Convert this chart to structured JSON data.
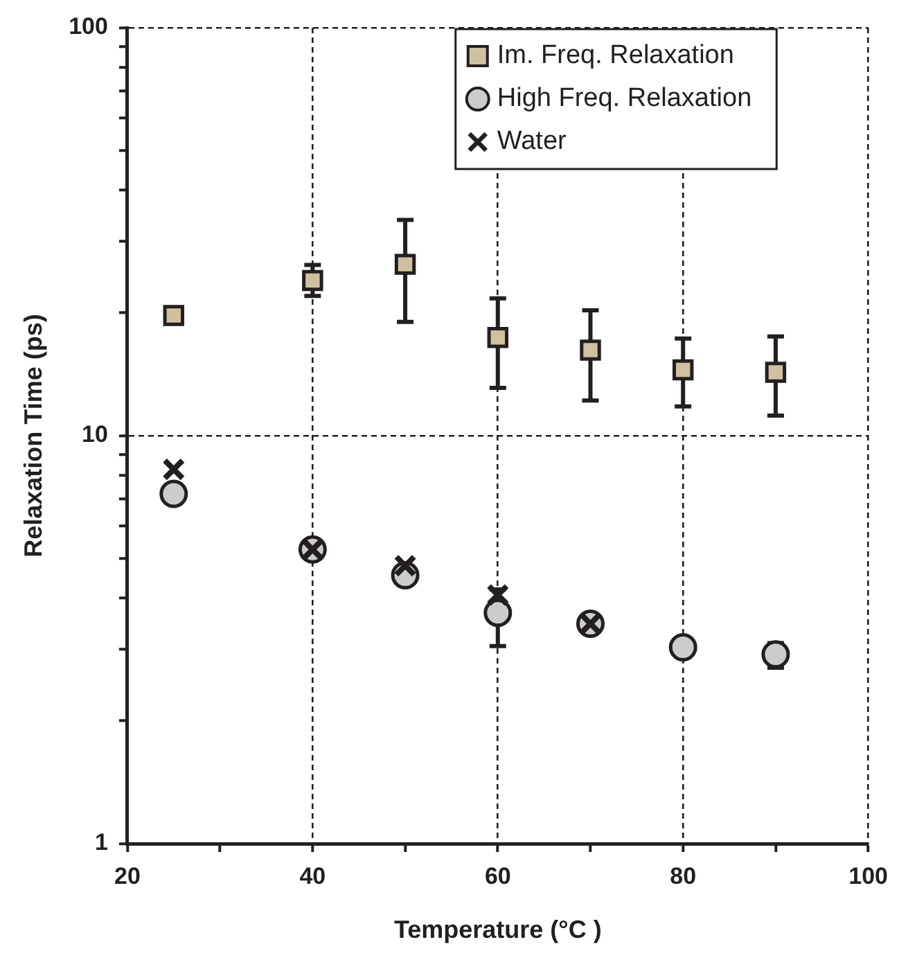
{
  "chart_data": {
    "type": "scatter",
    "xlabel": "Temperature (°C )",
    "ylabel": "Relaxation Time (ps)",
    "x": [
      25,
      40,
      50,
      60,
      70,
      80,
      90
    ],
    "series": [
      {
        "name": "Im. Freq. Relaxation",
        "color": "#cfc19f",
        "marker": "square",
        "values": [
          19.7,
          24.0,
          26.3,
          17.4,
          16.2,
          14.5,
          14.3
        ],
        "errors": [
          null,
          [
            22.0,
            26.2
          ],
          [
            19.0,
            33.8
          ],
          [
            13.1,
            21.7
          ],
          [
            12.2,
            20.3
          ],
          [
            11.8,
            17.3
          ],
          [
            11.2,
            17.5
          ]
        ]
      },
      {
        "name": "High Freq. Relaxation",
        "color": "#cccccc",
        "marker": "circle",
        "values": [
          7.2,
          5.26,
          4.55,
          3.68,
          3.46,
          3.03,
          2.91
        ],
        "errors": [
          null,
          null,
          null,
          [
            3.05,
            4.2
          ],
          null,
          null,
          [
            2.7,
            3.1
          ]
        ]
      },
      {
        "name": "Water",
        "color": "#231f20",
        "marker": "cross",
        "values": [
          8.27,
          5.26,
          4.8,
          4.07,
          3.46,
          null,
          null
        ]
      }
    ],
    "log": "y",
    "xlim": [
      20,
      100
    ],
    "ylim": [
      1,
      100
    ],
    "xticks": [
      20,
      {
        "value": 30,
        "label": null
      },
      40,
      {
        "value": 50,
        "label": null
      },
      60,
      {
        "value": 70,
        "label": null
      },
      80,
      {
        "value": 90,
        "label": null
      },
      100
    ],
    "yticks": [
      1,
      {
        "value": 2,
        "label": null
      },
      {
        "value": 3,
        "label": null
      },
      {
        "value": 4,
        "label": null
      },
      {
        "value": 5,
        "label": null
      },
      {
        "value": 6,
        "label": null
      },
      {
        "value": 7,
        "label": null
      },
      {
        "value": 8,
        "label": null
      },
      {
        "value": 9,
        "label": null
      },
      10,
      {
        "value": 20,
        "label": null
      },
      {
        "value": 30,
        "label": null
      },
      {
        "value": 40,
        "label": null
      },
      {
        "value": 50,
        "label": null
      },
      {
        "value": 60,
        "label": null
      },
      {
        "value": 70,
        "label": null
      },
      {
        "value": 80,
        "label": null
      },
      {
        "value": 90,
        "label": null
      },
      100
    ],
    "grid": true,
    "legend": "top right"
  }
}
